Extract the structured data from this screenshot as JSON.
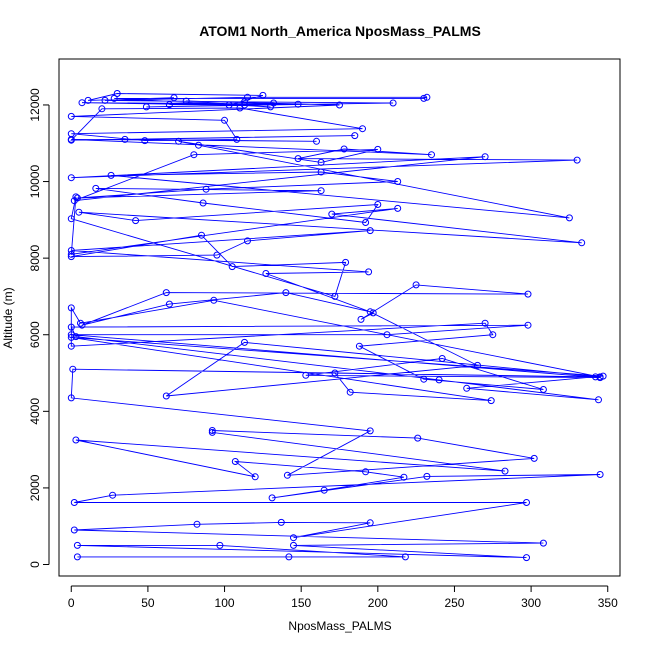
{
  "chart_data": {
    "type": "line",
    "title": "ATOM1 North_America NposMass_PALMS",
    "xlabel": "NposMass_PALMS",
    "ylabel": "Altitude (m)",
    "xlim": [
      -8,
      358
    ],
    "ylim": [
      -300,
      13200
    ],
    "xticks": [
      0,
      50,
      100,
      150,
      200,
      250,
      300,
      350
    ],
    "yticks": [
      0,
      2000,
      4000,
      6000,
      8000,
      10000,
      12000
    ],
    "grid": false,
    "legend": "none",
    "colors": {
      "series": "#0000ff",
      "axes": "#000000"
    },
    "marker": "open-circle",
    "series": [
      {
        "x": [
          4,
          142,
          218,
          97,
          4,
          297,
          145,
          308,
          2,
          82,
          137,
          195,
          145,
          297,
          2,
          27,
          345,
          232,
          131,
          165,
          217,
          192,
          107,
          120,
          3,
          283,
          92,
          92,
          226,
          302,
          141,
          195,
          0,
          1,
          342,
          172,
          182,
          274,
          0,
          347,
          258,
          344,
          240,
          3,
          0,
          298,
          206,
          0,
          345,
          153,
          242,
          308,
          230,
          188,
          275,
          270,
          0,
          0,
          6,
          93,
          345,
          113,
          62,
          265,
          195,
          140,
          64,
          7,
          62,
          298,
          225,
          189,
          197,
          127,
          194,
          0,
          195,
          115,
          95,
          0,
          85,
          105,
          179,
          172,
          0,
          3,
          0,
          213,
          170,
          333,
          5,
          42,
          200,
          192,
          86,
          16,
          163,
          4,
          88,
          213,
          163,
          26,
          325,
          83,
          70,
          163,
          200,
          80,
          2,
          270,
          0,
          330,
          148,
          178,
          235,
          0,
          160,
          35,
          185,
          0,
          20,
          110,
          190,
          0,
          48,
          108,
          100,
          0,
          175,
          75,
          130,
          28,
          230,
          232,
          115,
          22,
          113,
          210,
          49,
          113,
          132,
          64,
          148,
          7,
          103,
          125,
          30,
          11,
          67
        ],
        "y": [
          200,
          200,
          200,
          500,
          500,
          180,
          500,
          560,
          900,
          1050,
          1100,
          1090,
          700,
          1620,
          1620,
          1810,
          2350,
          2300,
          1740,
          1940,
          2280,
          2420,
          2690,
          2290,
          3250,
          2440,
          3450,
          3500,
          3300,
          2770,
          2330,
          3490,
          4350,
          5100,
          4900,
          5000,
          4500,
          4280,
          5930,
          4920,
          4600,
          4300,
          4820,
          5950,
          6200,
          6250,
          6000,
          6000,
          4880,
          4940,
          5380,
          4570,
          4840,
          5700,
          6000,
          6300,
          5700,
          6700,
          6300,
          6900,
          4900,
          5800,
          4400,
          5200,
          6600,
          7100,
          6800,
          6250,
          7100,
          7060,
          7300,
          6400,
          6570,
          7600,
          7640,
          8200,
          8720,
          8450,
          8080,
          8040,
          8600,
          7780,
          7890,
          7000,
          9030,
          9600,
          8100,
          9300,
          9150,
          8400,
          9200,
          8980,
          9400,
          8930,
          9440,
          9820,
          9760,
          9570,
          9800,
          10000,
          10250,
          10160,
          9050,
          10950,
          11050,
          10500,
          10840,
          10700,
          9500,
          10650,
          10100,
          10560,
          10600,
          10850,
          10700,
          11100,
          11050,
          11100,
          11200,
          11080,
          11900,
          11920,
          11380,
          11250,
          11070,
          11100,
          11600,
          11700,
          12000,
          12100,
          11950,
          12170,
          12170,
          12200,
          12200,
          12120,
          12080,
          12050,
          11950,
          12000,
          12050,
          12010,
          12020,
          12060,
          12000,
          12250,
          12300,
          12120,
          12190
        ]
      }
    ]
  }
}
